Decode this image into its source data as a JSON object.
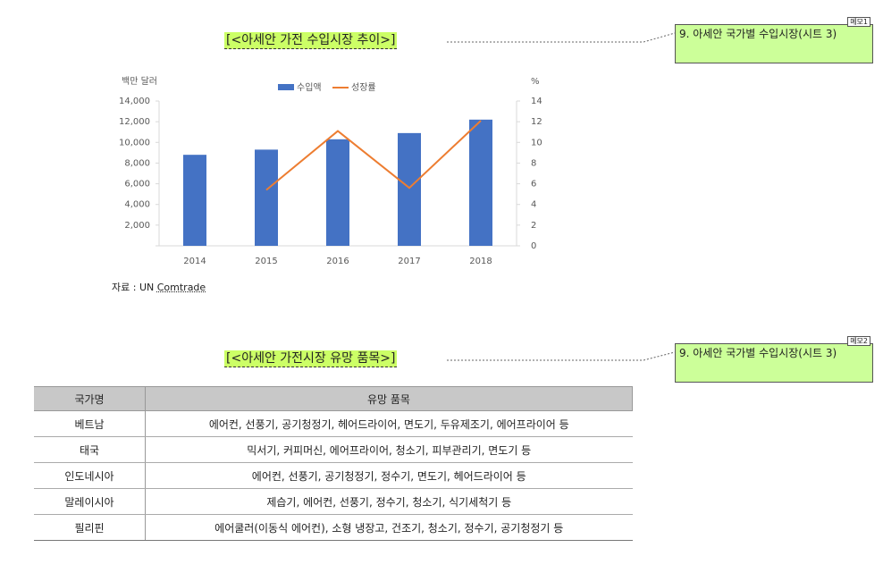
{
  "chart_section": {
    "title": "[<아세안 가전 수입시장 추이>]",
    "source_label": "자료 : UN",
    "source_name": "Comtrade"
  },
  "table_section": {
    "title": "[<아세안 가전시장 유망 품목>]",
    "headers": [
      "국가명",
      "유망 품목"
    ],
    "rows": [
      {
        "country": "베트남",
        "items": "에어컨, 선풍기, 공기청정기, 헤어드라이어, 면도기, 두유제조기, 에어프라이어 등"
      },
      {
        "country": "태국",
        "items": "믹서기, 커피머신, 에어프라이어, 청소기, 피부관리기, 면도기 등"
      },
      {
        "country": "인도네시아",
        "items": "에어컨, 선풍기, 공기청정기, 정수기, 면도기, 헤어드라이어 등"
      },
      {
        "country": "말레이시아",
        "items": "제습기, 에어컨, 선풍기, 정수기, 청소기, 식기세척기 등"
      },
      {
        "country": "필리핀",
        "items": "에어쿨러(이동식 에어컨), 소형 냉장고, 건조기, 청소기, 정수기, 공기청정기 등"
      }
    ]
  },
  "memos": [
    {
      "tag": "메모1",
      "text": "9. 아세안 국가별 수입시장(시트 3)"
    },
    {
      "tag": "메모2",
      "text": "9. 아세안 국가별 수입시장(시트 3)"
    }
  ],
  "chart_data": {
    "type": "bar",
    "categories": [
      "2014",
      "2015",
      "2016",
      "2017",
      "2018"
    ],
    "series": [
      {
        "name": "수입액",
        "kind": "bar",
        "axis": "left",
        "color": "#4472c4",
        "values": [
          8800,
          9300,
          10300,
          10900,
          12200
        ]
      },
      {
        "name": "성장률",
        "kind": "line",
        "axis": "right",
        "color": "#ed7d31",
        "values": [
          null,
          5.4,
          11.1,
          5.6,
          12.1
        ]
      }
    ],
    "ylabel_left": "백만 달러",
    "ylabel_right": "%",
    "ylim_left": [
      0,
      14000
    ],
    "yticks_left": [
      "",
      "2,000",
      "4,000",
      "6,000",
      "8,000",
      "10,000",
      "12,000",
      "14,000"
    ],
    "ylim_right": [
      0,
      14
    ],
    "yticks_right": [
      "0",
      "2",
      "4",
      "6",
      "8",
      "10",
      "12",
      "14"
    ],
    "legend_position": "top",
    "grid": false
  }
}
